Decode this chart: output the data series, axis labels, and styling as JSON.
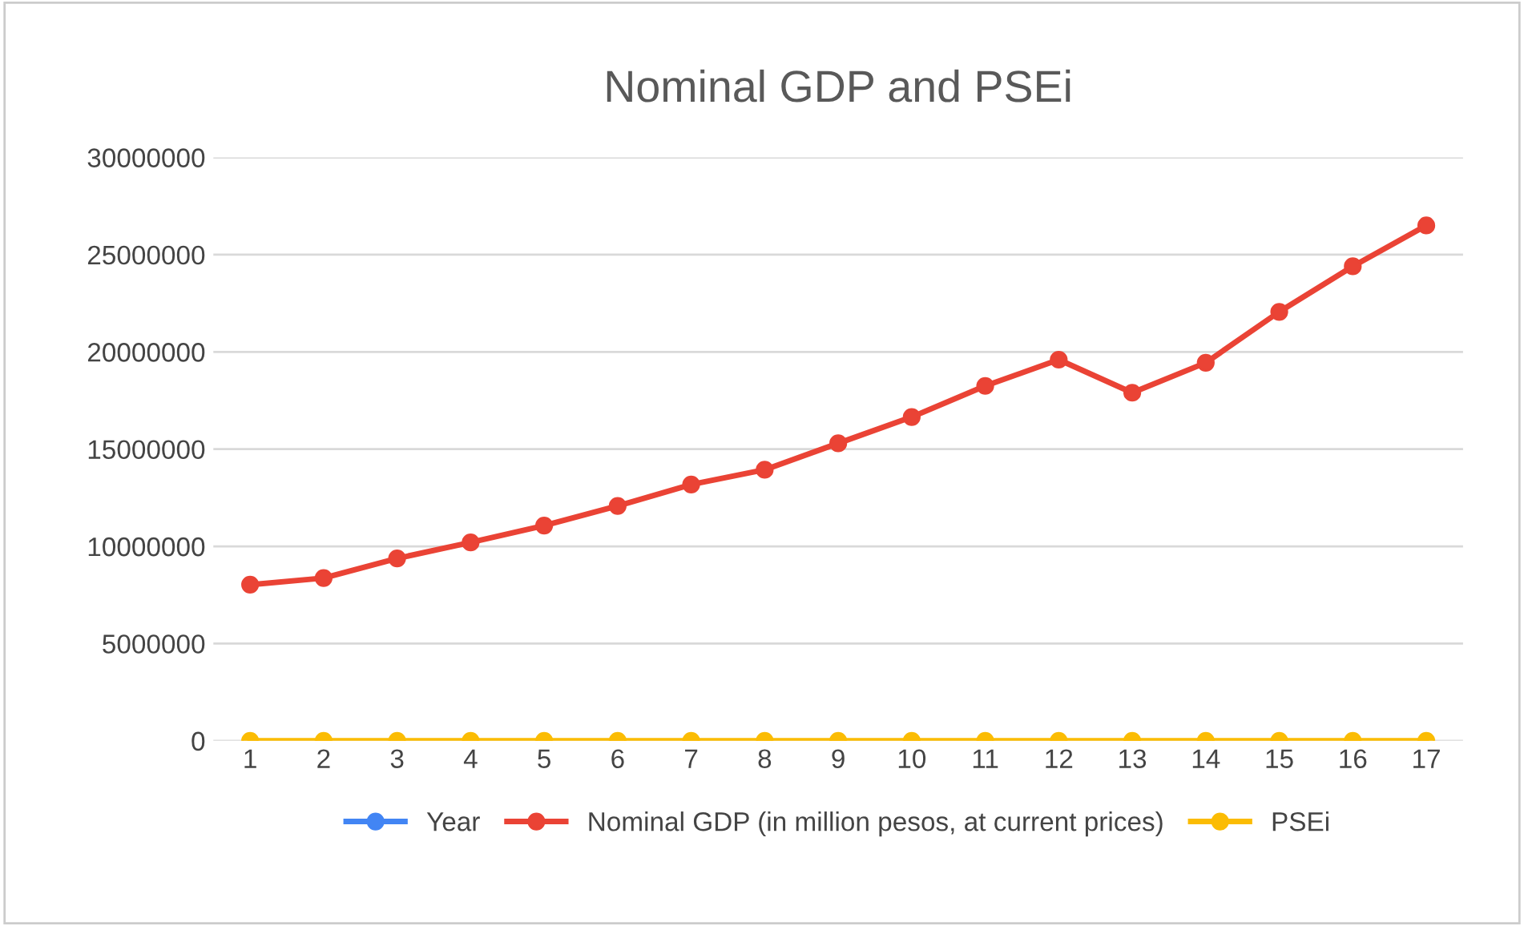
{
  "chart_data": {
    "type": "line",
    "title": "Nominal GDP and PSEi",
    "categories": [
      "1",
      "2",
      "3",
      "4",
      "5",
      "6",
      "7",
      "8",
      "9",
      "10",
      "11",
      "12",
      "13",
      "14",
      "15",
      "16",
      "17"
    ],
    "series": [
      {
        "name": "Year",
        "color": "#4285f4",
        "values": [
          null,
          null,
          null,
          null,
          null,
          null,
          null,
          null,
          null,
          null,
          null,
          null,
          null,
          null,
          null,
          null,
          null
        ]
      },
      {
        "name": "Nominal GDP (in million pesos, at current prices)",
        "color": "#ea4335",
        "values": [
          8030000,
          8370000,
          9380000,
          10200000,
          11070000,
          12080000,
          13180000,
          13940000,
          15300000,
          16650000,
          18250000,
          19600000,
          17900000,
          19440000,
          22060000,
          24400000,
          26500000
        ]
      },
      {
        "name": "PSEi",
        "color": "#fbbc04",
        "values": [
          0,
          0,
          0,
          0,
          0,
          0,
          0,
          0,
          0,
          0,
          0,
          0,
          0,
          0,
          0,
          0,
          0
        ]
      }
    ],
    "ylim": [
      0,
      30000000
    ],
    "yticks": [
      0,
      5000000,
      10000000,
      15000000,
      20000000,
      25000000,
      30000000
    ],
    "grid": "y",
    "legend": "bottom",
    "marker": "circle",
    "line_style": "solid"
  }
}
